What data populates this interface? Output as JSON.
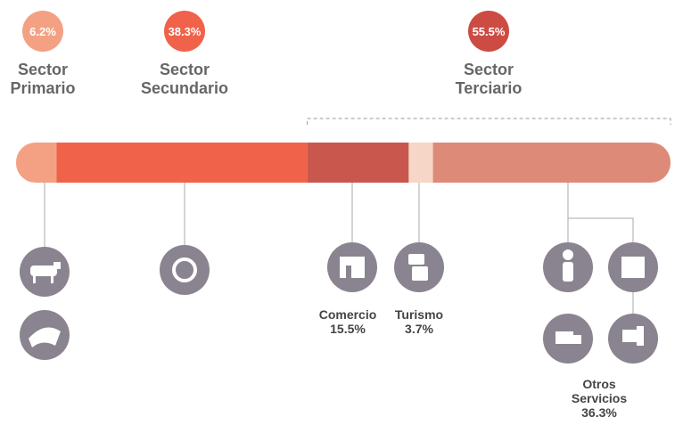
{
  "sectors": [
    {
      "name": "Sector\nPrimario",
      "value": 6.2,
      "value_label": "6.2%",
      "color": "#f4a183"
    },
    {
      "name": "Sector\nSecundario",
      "value": 38.3,
      "value_label": "38.3%",
      "color": "#f0624a"
    },
    {
      "name": "Sector\nTerciario",
      "value": 55.5,
      "value_label": "55.5%",
      "color": "#cc4c44"
    }
  ],
  "subsectors": [
    {
      "name": "Comercio",
      "value": 15.5,
      "value_label": "15.5%",
      "color": "#c9574e"
    },
    {
      "name": "Turismo",
      "value": 3.7,
      "value_label": "3.7%",
      "color": "#f6d6c6"
    },
    {
      "name": "Otros\nServicios",
      "value": 36.3,
      "value_label": "36.3%",
      "color": "#dd8b78"
    }
  ]
}
